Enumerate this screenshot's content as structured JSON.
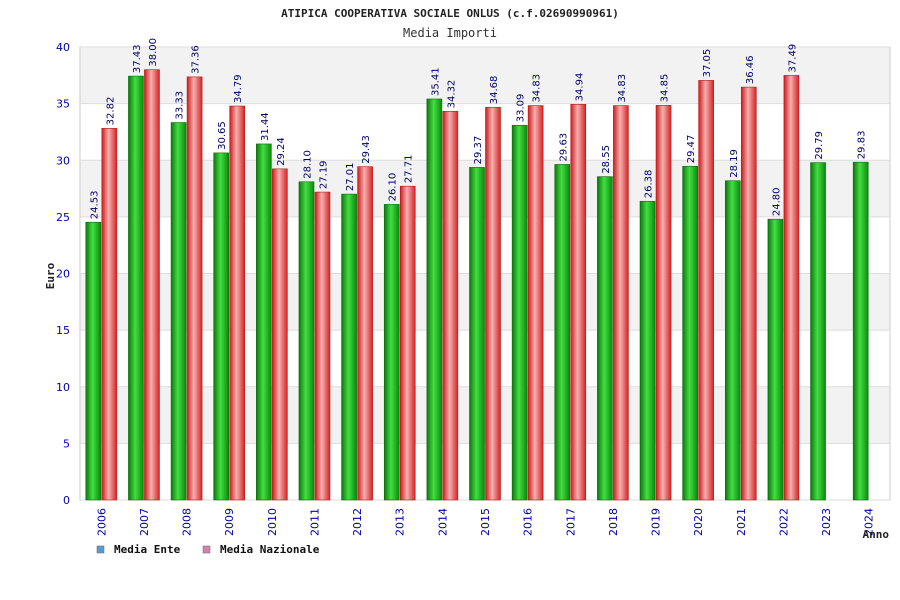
{
  "chart_data": {
    "type": "bar",
    "title": "ATIPICA COOPERATIVA SOCIALE ONLUS (c.f.02690990961)",
    "subtitle": "Media Importi",
    "ylabel": "Euro",
    "xlabel": "Anno",
    "ylim": [
      0,
      40
    ],
    "yticks": [
      0,
      5,
      10,
      15,
      20,
      25,
      30,
      35,
      40
    ],
    "grid": true,
    "legend_position": "bottom-left",
    "categories": [
      "2006",
      "2007",
      "2008",
      "2009",
      "2010",
      "2011",
      "2012",
      "2013",
      "2014",
      "2015",
      "2016",
      "2017",
      "2018",
      "2019",
      "2020",
      "2021",
      "2022",
      "2023",
      "2024"
    ],
    "series": [
      {
        "name": "Media Ente",
        "legend_color": "#5b9bd5",
        "bar_color": "#1aa81a",
        "values": [
          24.53,
          37.43,
          33.33,
          30.65,
          31.44,
          28.1,
          27.01,
          26.1,
          35.41,
          29.37,
          33.09,
          29.63,
          28.55,
          26.38,
          29.47,
          28.19,
          24.8,
          29.79,
          29.83
        ],
        "labels": [
          "24.53",
          "37.43",
          "33.33",
          "30.65",
          "31.44",
          "28.10",
          "27.01",
          "26.10",
          "35.41",
          "29.37",
          "33.09",
          "29.63",
          "28.55",
          "26.38",
          "29.47",
          "28.19",
          "24.80",
          "29.79",
          "29.83"
        ]
      },
      {
        "name": "Media Nazionale",
        "legend_color": "#d580b0",
        "bar_color": "#e82c2c",
        "values": [
          32.82,
          38.0,
          37.36,
          34.79,
          29.24,
          27.19,
          29.43,
          27.71,
          34.32,
          34.68,
          34.83,
          34.94,
          34.83,
          34.85,
          37.05,
          36.46,
          37.49,
          null,
          null
        ],
        "labels": [
          "32.82",
          "38.00",
          "37.36",
          "34.79",
          "29.24",
          "27.19",
          "29.43",
          "27.71",
          "34.32",
          "34.68",
          "34.83",
          "34.94",
          "34.83",
          "34.85",
          "37.05",
          "36.46",
          "37.49",
          null,
          null
        ]
      }
    ]
  }
}
